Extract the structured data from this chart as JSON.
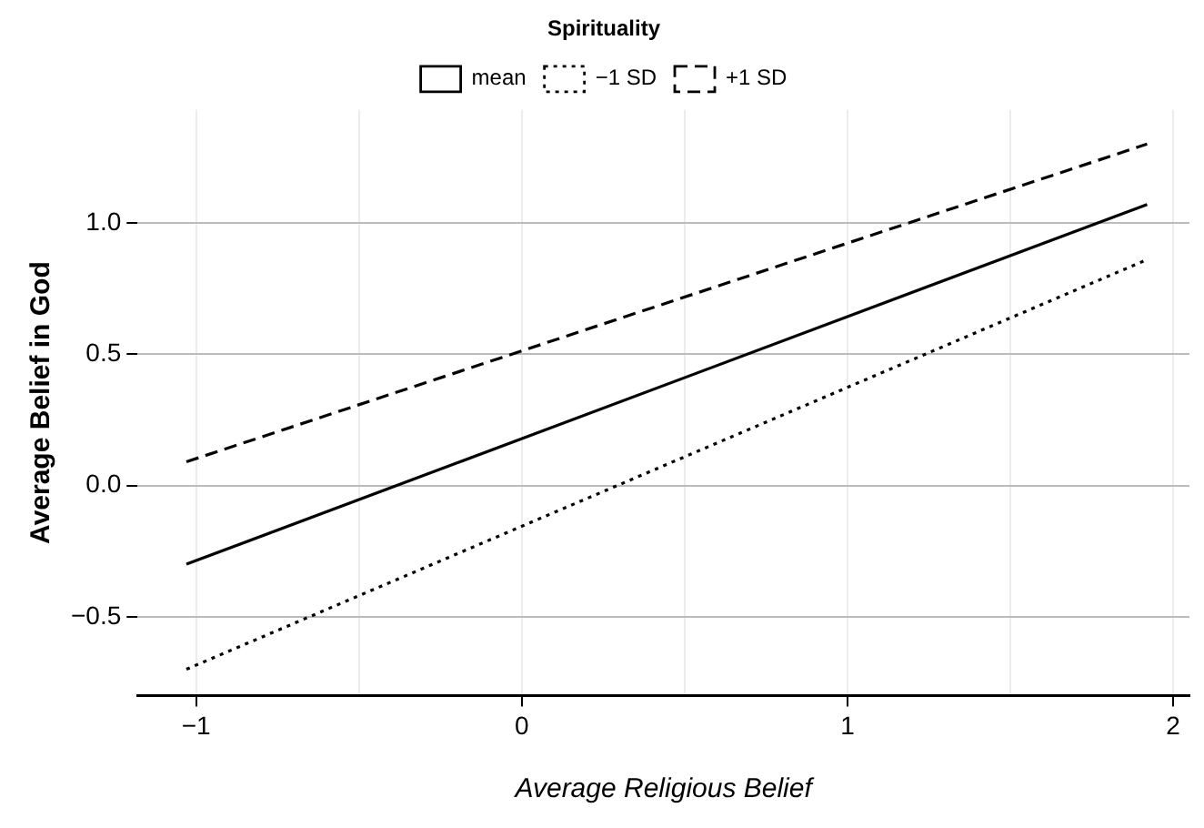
{
  "chart_data": {
    "type": "line",
    "xlabel": "Average Religious Belief",
    "ylabel": "Average Belief in God",
    "legend_title": "Spirituality",
    "legend": "top",
    "series": [
      {
        "name": "mean",
        "color": "#000000",
        "line_style": "solid",
        "values": [
          -0.3,
          1.07
        ]
      },
      {
        "name": "−1 SD",
        "color": "#000000",
        "line_style": "dotted",
        "values": [
          -0.7,
          0.86
        ]
      },
      {
        "name": "+1 SD",
        "color": "#000000",
        "line_style": "dashed",
        "values": [
          0.09,
          1.3
        ]
      }
    ],
    "x": [
      -1.03,
      1.92
    ],
    "xlim": [
      -1.18,
      2.05
    ],
    "xticks": [
      {
        "value": -1,
        "label": "−1"
      },
      {
        "value": -0.5,
        "label": null
      },
      0,
      {
        "value": 0.5,
        "label": null
      },
      1,
      {
        "value": 1.5,
        "label": null
      },
      2
    ],
    "ylim": [
      -0.8,
      1.43
    ],
    "yticks": [
      {
        "value": -0.5,
        "label": "−0.5"
      },
      {
        "value": 0,
        "label": "0.0"
      },
      0.5,
      {
        "value": 1,
        "label": "1.0"
      }
    ],
    "grid": true,
    "marker": "none"
  }
}
